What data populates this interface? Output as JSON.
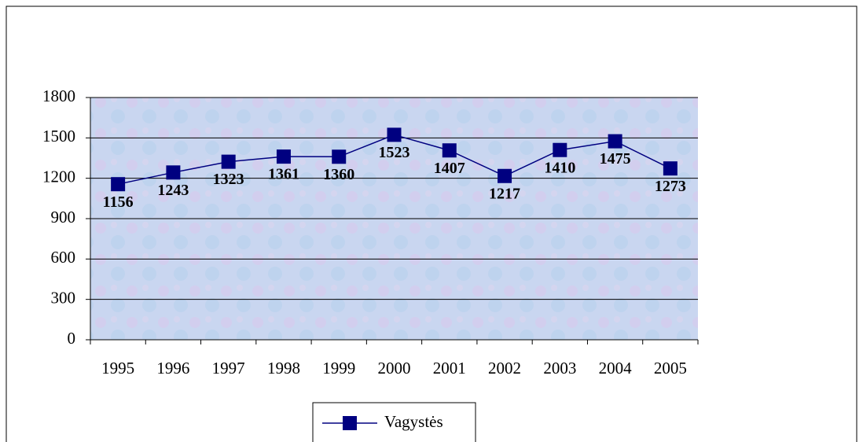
{
  "chart_data": {
    "type": "line",
    "categories": [
      "1995",
      "1996",
      "1997",
      "1998",
      "1999",
      "2000",
      "2001",
      "2002",
      "2003",
      "2004",
      "2005"
    ],
    "series": [
      {
        "name": "Vagystės",
        "color": "#000080",
        "values": [
          1156,
          1243,
          1323,
          1361,
          1360,
          1523,
          1407,
          1217,
          1410,
          1475,
          1273
        ]
      }
    ],
    "ylim": [
      0,
      1800
    ],
    "yticks": [
      0,
      300,
      600,
      900,
      1200,
      1500,
      1800
    ],
    "grid": true,
    "legend": "bottom"
  }
}
